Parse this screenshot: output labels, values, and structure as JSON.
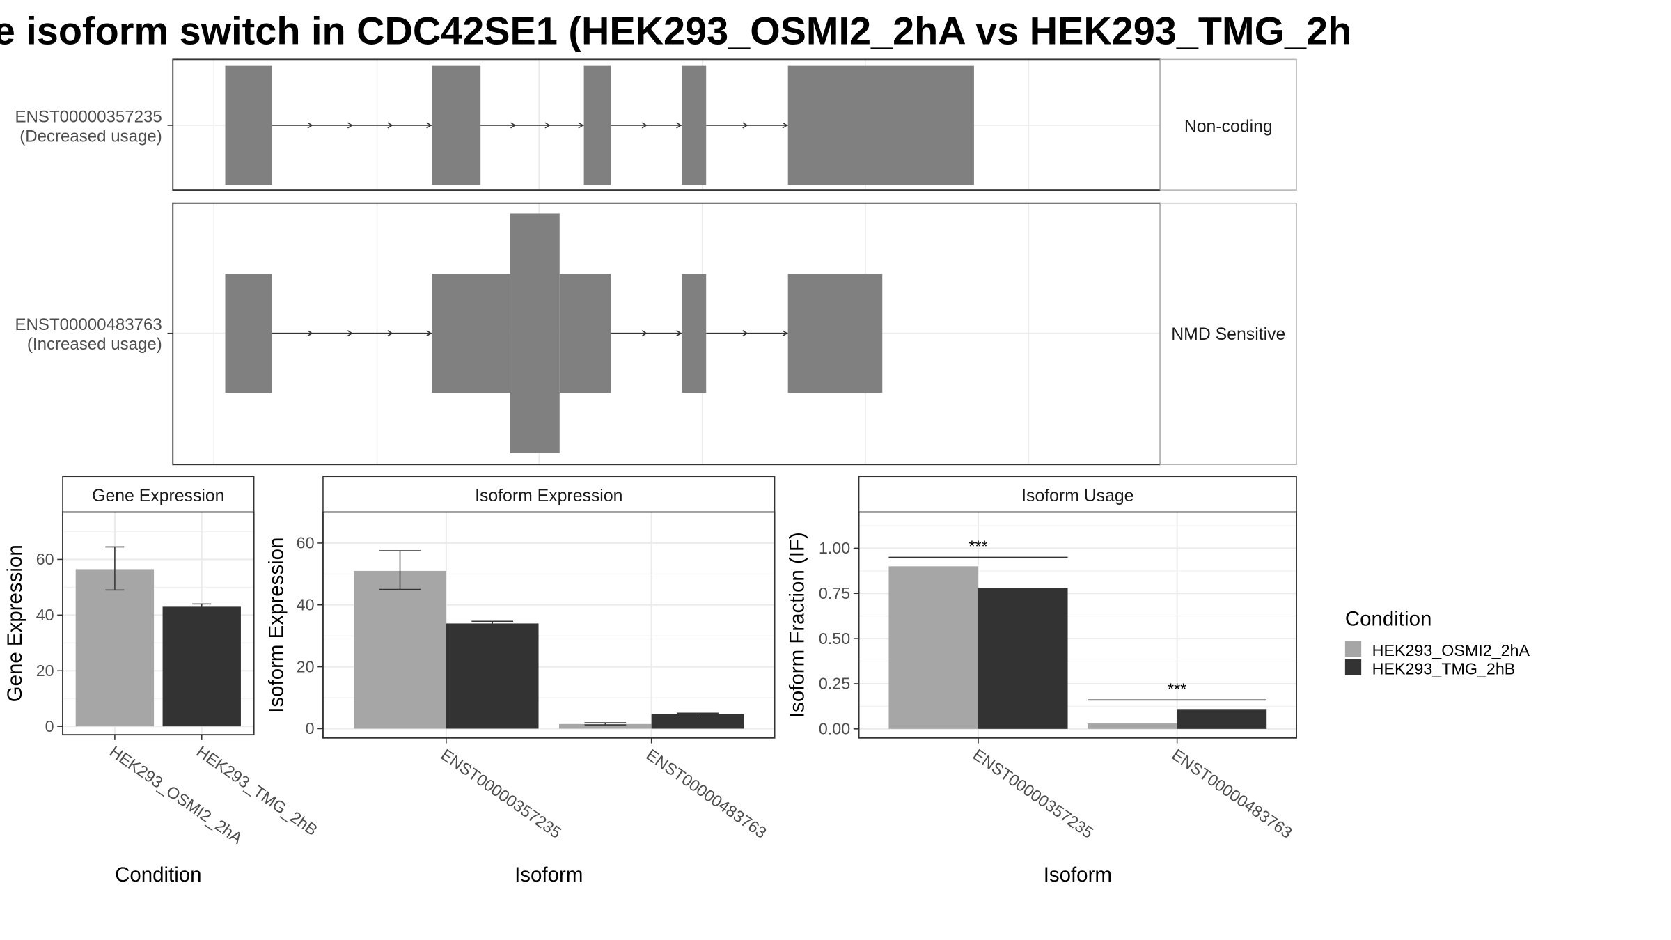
{
  "title": "e isoform switch in CDC42SE1 (HEK293_OSMI2_2hA vs HEK293_TMG_2h",
  "colors": {
    "cond_a": "#a6a6a6",
    "cond_b": "#333333",
    "structure": "#808080",
    "grid": "#ebebeb",
    "strip_border": "#b3b3b3"
  },
  "chart_data": [
    {
      "type": "isoform-structure",
      "title": "",
      "genomic_scale": [
        0,
        1000
      ],
      "isoforms": [
        {
          "id": "ENST00000357235",
          "label_line1": "ENST00000357235",
          "label_line2": "(Decreased usage)",
          "annotation": "Non-coding",
          "exons": [
            [
              9,
              61,
              "utr"
            ],
            [
              239,
              293,
              "utr"
            ],
            [
              408,
              438,
              "utr"
            ],
            [
              517,
              544,
              "utr"
            ],
            [
              635,
              842,
              "utr"
            ]
          ]
        },
        {
          "id": "ENST00000483763",
          "label_line1": "ENST00000483763",
          "label_line2": "(Increased usage)",
          "annotation": "NMD Sensitive",
          "exons": [
            [
              9,
              61,
              "utr"
            ],
            [
              239,
              326,
              "utr"
            ],
            [
              326,
              381,
              "cds"
            ],
            [
              381,
              438,
              "utr"
            ],
            [
              517,
              544,
              "utr"
            ],
            [
              635,
              740,
              "utr"
            ]
          ]
        }
      ]
    },
    {
      "type": "bar",
      "title": "Gene Expression",
      "xlabel": "Condition",
      "ylabel": "Gene Expression",
      "ylim": [
        -3,
        77
      ],
      "yticks": [
        0,
        20,
        40,
        60
      ],
      "categories": [
        "HEK293_OSMI2_2hA",
        "HEK293_TMG_2hB"
      ],
      "values": [
        56.5,
        43.0
      ],
      "err_low": [
        49.0,
        42.0
      ],
      "err_high": [
        64.5,
        44.0
      ]
    },
    {
      "type": "bar",
      "title": "Isoform Expression",
      "xlabel": "Isoform",
      "ylabel": "Isoform Expression",
      "ylim": [
        -3,
        70
      ],
      "yticks": [
        0,
        20,
        40,
        60
      ],
      "categories": [
        "ENST00000357235",
        "ENST00000483763"
      ],
      "series": [
        {
          "name": "HEK293_OSMI2_2hA",
          "values": [
            51.0,
            1.5
          ],
          "err_low": [
            45.0,
            1.2
          ],
          "err_high": [
            57.5,
            1.9
          ]
        },
        {
          "name": "HEK293_TMG_2hB",
          "values": [
            34.0,
            4.7
          ],
          "err_low": [
            33.0,
            4.4
          ],
          "err_high": [
            34.7,
            5.0
          ]
        }
      ]
    },
    {
      "type": "bar",
      "title": "Isoform Usage",
      "xlabel": "Isoform",
      "ylabel": "Isoform Fraction (IF)",
      "ylim": [
        -0.05,
        1.2
      ],
      "yticks": [
        "0.00",
        "0.25",
        "0.50",
        "0.75",
        "1.00"
      ],
      "categories": [
        "ENST00000357235",
        "ENST00000483763"
      ],
      "series": [
        {
          "name": "HEK293_OSMI2_2hA",
          "values": [
            0.9,
            0.03
          ]
        },
        {
          "name": "HEK293_TMG_2hB",
          "values": [
            0.78,
            0.11
          ]
        }
      ],
      "significance": [
        {
          "category": "ENST00000357235",
          "label": "***",
          "y": 0.95
        },
        {
          "category": "ENST00000483763",
          "label": "***",
          "y": 0.16
        }
      ]
    }
  ],
  "legend": {
    "title": "Condition",
    "placement": "right",
    "entries": [
      "HEK293_OSMI2_2hA",
      "HEK293_TMG_2hB"
    ]
  }
}
